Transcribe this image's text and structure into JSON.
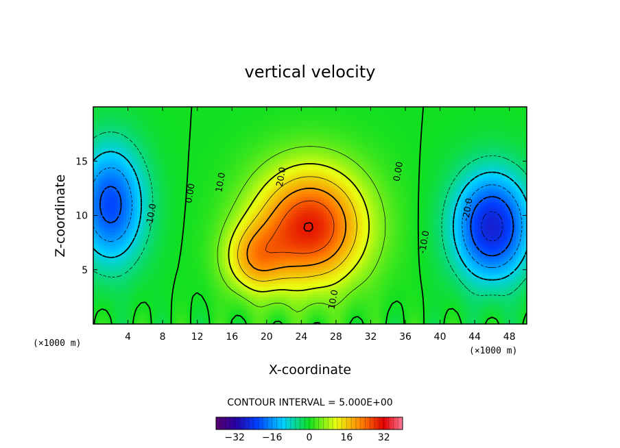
{
  "chart_data": {
    "type": "heatmap",
    "title": "vertical velocity",
    "xlabel": "X-coordinate",
    "ylabel": "Z-coordinate",
    "x_unit_note": "(×1000 m)",
    "xlim": [
      0,
      50
    ],
    "ylim": [
      0,
      20
    ],
    "x_ticks": [
      4,
      8,
      12,
      16,
      20,
      24,
      28,
      32,
      36,
      40,
      44,
      48
    ],
    "y_ticks": [
      5,
      10,
      15
    ],
    "contour_interval_text": "CONTOUR INTERVAL = 5.000E+00",
    "contour_interval": 5,
    "colorbar": {
      "range": [
        -40,
        40
      ],
      "ticks": [
        -32,
        -16,
        0,
        16,
        32
      ],
      "colormap": "rainbow"
    },
    "field_features": [
      {
        "type": "updraft",
        "center": [
          25,
          9
        ],
        "peak": 30
      },
      {
        "type": "downdraft",
        "center": [
          46,
          9
        ],
        "peak": -27
      },
      {
        "type": "downdraft",
        "center": [
          2,
          11
        ],
        "peak": -22
      }
    ],
    "contour_labels": [
      {
        "text": "10.0",
        "x": 15,
        "z": 13
      },
      {
        "text": "20.0",
        "x": 22,
        "z": 13.5
      },
      {
        "text": "0.00",
        "x": 11.5,
        "z": 12
      },
      {
        "text": "0.00",
        "x": 35.5,
        "z": 14
      },
      {
        "text": "10.0",
        "x": 28,
        "z": 2.2
      },
      {
        "text": "-10.0",
        "x": 7,
        "z": 10
      },
      {
        "text": "-10.0",
        "x": 38.5,
        "z": 7.5
      },
      {
        "text": "-20.0",
        "x": 43.5,
        "z": 10.5
      }
    ]
  }
}
